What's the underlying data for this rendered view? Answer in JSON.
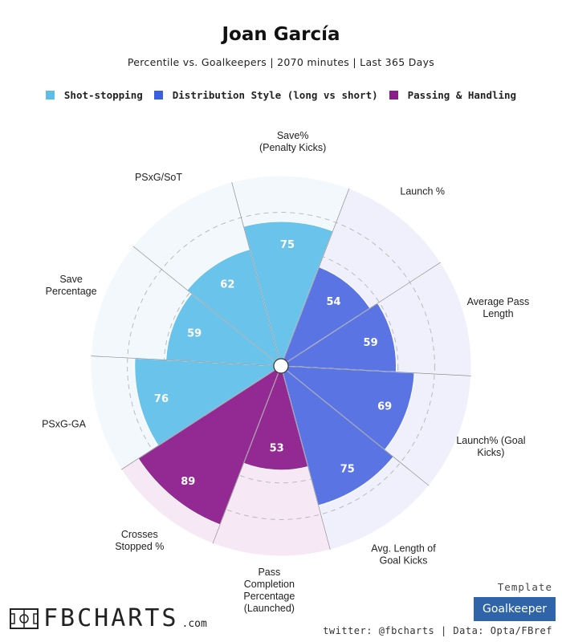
{
  "header": {
    "title": "Joan García",
    "subtitle": "Percentile vs. Goalkeepers | 2070 minutes | Last 365 Days"
  },
  "legend": [
    {
      "label": "Shot-stopping",
      "color": "#5bbde8"
    },
    {
      "label": "Distribution Style (long vs short)",
      "color": "#3a5fe0"
    },
    {
      "label": "Passing & Handling",
      "color": "#8a1c8c"
    }
  ],
  "chart_data": {
    "type": "radar",
    "title": "Joan García",
    "subtitle": "Percentile vs. Goalkeepers | 2070 minutes | Last 365 Days",
    "range": [
      0,
      100
    ],
    "start_angle_deg": -15,
    "categories": [
      {
        "label": "Save%\n(Penalty Kicks)",
        "value": 75,
        "group": 0
      },
      {
        "label": "Launch %",
        "value": 54,
        "group": 1
      },
      {
        "label": "Average Pass\nLength",
        "value": 59,
        "group": 1
      },
      {
        "label": "Launch% (Goal\nKicks)",
        "value": 69,
        "group": 1
      },
      {
        "label": "Avg. Length of\nGoal Kicks",
        "value": 75,
        "group": 1
      },
      {
        "label": "Pass\nCompletion\nPercentage\n(Launched)",
        "value": 53,
        "group": 2
      },
      {
        "label": "Crosses\nStopped %",
        "value": 89,
        "group": 2
      },
      {
        "label": "PSxG-GA",
        "value": 76,
        "group": 0
      },
      {
        "label": "Save\nPercentage",
        "value": 59,
        "group": 0
      },
      {
        "label": "PSxG/SoT",
        "value": 62,
        "group": 0
      }
    ],
    "group_colors": [
      "#6ac3ea",
      "#5a75e3",
      "#932a93"
    ],
    "background_colors": [
      "#f2f8fc",
      "#eff0fb",
      "#f7e8f6"
    ],
    "gridlines": [
      20,
      40,
      60,
      80,
      100
    ]
  },
  "footer": {
    "brand": "FBCHARTS",
    "brand_suffix": ".com",
    "template_label": "Template",
    "template_value": "Goalkeeper",
    "credits": "twitter: @fbcharts | Data: Opta/FBref"
  }
}
